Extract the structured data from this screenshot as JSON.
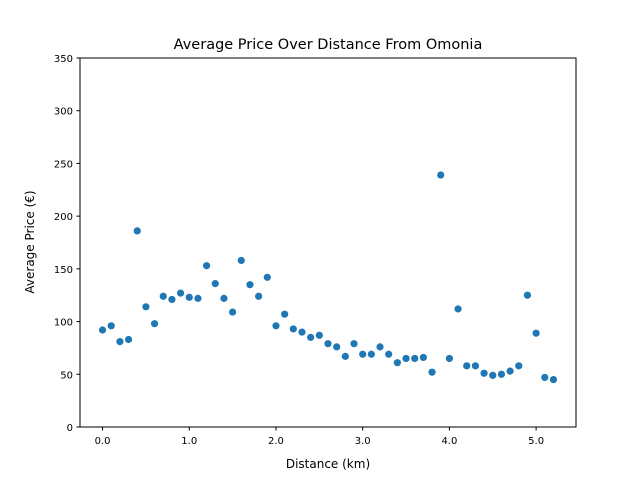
{
  "chart_data": {
    "type": "scatter",
    "title": "Average Price Over Distance From Omonia",
    "xlabel": "Distance (km)",
    "ylabel": "Average Price (€)",
    "xlim": [
      -0.26,
      5.46
    ],
    "ylim": [
      0,
      350
    ],
    "x_ticks": [
      0.0,
      1.0,
      2.0,
      3.0,
      4.0,
      5.0
    ],
    "x_tick_labels": [
      "0.0",
      "1.0",
      "2.0",
      "3.0",
      "4.0",
      "5.0"
    ],
    "y_ticks": [
      0,
      50,
      100,
      150,
      200,
      250,
      300,
      350
    ],
    "y_tick_labels": [
      "0",
      "50",
      "100",
      "150",
      "200",
      "250",
      "300",
      "350"
    ],
    "grid": false,
    "marker_color": "#1f77b4",
    "series": [
      {
        "x": [
          0.0,
          0.1,
          0.2,
          0.3,
          0.4,
          0.5,
          0.6,
          0.7,
          0.8,
          0.9,
          1.0,
          1.1,
          1.2,
          1.3,
          1.4,
          1.5,
          1.6,
          1.7,
          1.8,
          1.9,
          2.0,
          2.1,
          2.2,
          2.3,
          2.4,
          2.5,
          2.6,
          2.7,
          2.8,
          2.9,
          3.0,
          3.1,
          3.2,
          3.3,
          3.4,
          3.5,
          3.6,
          3.7,
          3.8,
          3.9,
          4.0,
          4.1,
          4.2,
          4.3,
          4.4,
          4.5,
          4.6,
          4.7,
          4.8,
          4.9,
          5.0,
          5.1,
          5.2
        ],
        "y": [
          92,
          96,
          81,
          83,
          186,
          114,
          98,
          124,
          121,
          127,
          123,
          122,
          153,
          136,
          122,
          109,
          158,
          135,
          124,
          142,
          96,
          107,
          93,
          90,
          85,
          87,
          79,
          76,
          67,
          79,
          69,
          69,
          76,
          69,
          61,
          65,
          65,
          66,
          52,
          239,
          65,
          112,
          58,
          58,
          51,
          49,
          50,
          53,
          58,
          125,
          89,
          47,
          45
        ]
      }
    ]
  }
}
